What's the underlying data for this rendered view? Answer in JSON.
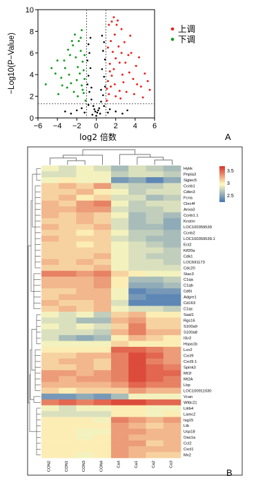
{
  "chart_data": [
    {
      "panel_label": "A",
      "type": "scatter",
      "xlabel": "log2 倍数",
      "ylabel": "−Log10(P−Value)",
      "xlim": [
        -6,
        6
      ],
      "ylim": [
        0,
        10
      ],
      "xticks": [
        "−6",
        "−4",
        "−2",
        "0",
        "2",
        "4",
        "6"
      ],
      "yticks": [
        "0",
        "2",
        "4",
        "6",
        "8",
        "10"
      ],
      "thresholds": {
        "x": [
          -1,
          1
        ],
        "y": 1.3
      },
      "colors": {
        "up": "#e8231f",
        "down": "#169b22",
        "ns": "#000000"
      },
      "legend_position": "top-right",
      "series": [
        {
          "name": "上调",
          "key": "up",
          "points": [
            [
              1.1,
              1.6
            ],
            [
              1.3,
              2.2
            ],
            [
              1.5,
              2.9
            ],
            [
              1.2,
              3.4
            ],
            [
              1.6,
              3.9
            ],
            [
              1.8,
              4.5
            ],
            [
              1.4,
              5.0
            ],
            [
              2.0,
              5.5
            ],
            [
              1.7,
              6.1
            ],
            [
              2.3,
              6.6
            ],
            [
              1.5,
              7.1
            ],
            [
              1.9,
              7.7
            ],
            [
              2.6,
              8.2
            ],
            [
              2.1,
              8.6
            ],
            [
              1.6,
              8.9
            ],
            [
              3.0,
              5.1
            ],
            [
              3.4,
              4.2
            ],
            [
              2.8,
              3.3
            ],
            [
              2.4,
              2.5
            ],
            [
              3.8,
              3.6
            ],
            [
              4.1,
              4.8
            ],
            [
              3.6,
              6.0
            ],
            [
              4.6,
              2.9
            ],
            [
              5.3,
              3.4
            ],
            [
              5.0,
              4.1
            ],
            [
              4.4,
              5.6
            ],
            [
              2.2,
              9.0
            ],
            [
              1.3,
              8.6
            ],
            [
              2.5,
              1.8
            ],
            [
              3.1,
              2.4
            ],
            [
              2.7,
              4.0
            ],
            [
              1.9,
              3.1
            ],
            [
              3.3,
              5.8
            ],
            [
              2.9,
              7.0
            ],
            [
              1.2,
              6.5
            ],
            [
              4.8,
              1.9
            ],
            [
              3.9,
              2.2
            ],
            [
              2.0,
              2.0
            ],
            [
              1.4,
              4.3
            ],
            [
              2.4,
              5.1
            ],
            [
              3.5,
              7.6
            ],
            [
              1.8,
              9.3
            ],
            [
              2.6,
              6.0
            ],
            [
              1.1,
              2.7
            ],
            [
              4.2,
              3.1
            ],
            [
              5.5,
              2.6
            ]
          ]
        },
        {
          "name": "下调",
          "key": "down",
          "points": [
            [
              -1.1,
              1.6
            ],
            [
              -1.3,
              2.3
            ],
            [
              -1.5,
              3.0
            ],
            [
              -1.2,
              3.6
            ],
            [
              -1.7,
              4.1
            ],
            [
              -1.9,
              4.7
            ],
            [
              -1.4,
              5.2
            ],
            [
              -2.1,
              5.6
            ],
            [
              -1.6,
              6.2
            ],
            [
              -2.4,
              6.7
            ],
            [
              -1.8,
              7.1
            ],
            [
              -2.2,
              7.7
            ],
            [
              -1.5,
              8.1
            ],
            [
              -2.8,
              4.0
            ],
            [
              -3.2,
              4.6
            ],
            [
              -2.6,
              3.2
            ],
            [
              -3.6,
              3.7
            ],
            [
              -4.2,
              4.1
            ],
            [
              -4.6,
              4.6
            ],
            [
              -5.2,
              3.1
            ],
            [
              -2.3,
              2.4
            ],
            [
              -3.0,
              2.8
            ],
            [
              -1.9,
              2.0
            ],
            [
              -2.7,
              5.8
            ],
            [
              -3.3,
              5.3
            ],
            [
              -1.3,
              4.4
            ],
            [
              -2.0,
              3.5
            ],
            [
              -3.9,
              2.2
            ],
            [
              -1.6,
              7.4
            ],
            [
              -2.5,
              7.1
            ],
            [
              -1.2,
              5.8
            ],
            [
              -4.0,
              5.3
            ],
            [
              -2.9,
              6.3
            ],
            [
              -1.4,
              2.6
            ],
            [
              -3.5,
              3.0
            ]
          ]
        },
        {
          "name": "",
          "key": "ns",
          "points": [
            [
              -0.9,
              3.1
            ],
            [
              -0.7,
              2.4
            ],
            [
              -0.5,
              1.7
            ],
            [
              -0.3,
              1.1
            ],
            [
              -0.1,
              0.6
            ],
            [
              0.1,
              0.5
            ],
            [
              0.3,
              0.9
            ],
            [
              0.5,
              1.5
            ],
            [
              0.7,
              2.1
            ],
            [
              0.9,
              2.9
            ],
            [
              -0.8,
              3.9
            ],
            [
              -0.6,
              4.6
            ],
            [
              -0.9,
              5.3
            ],
            [
              -0.7,
              6.0
            ],
            [
              -0.8,
              6.8
            ],
            [
              -0.6,
              7.4
            ],
            [
              0.8,
              3.8
            ],
            [
              0.6,
              4.5
            ],
            [
              0.9,
              5.4
            ],
            [
              0.7,
              6.2
            ],
            [
              0.8,
              7.0
            ],
            [
              0.6,
              7.6
            ],
            [
              -0.4,
              0.3
            ],
            [
              0.4,
              0.4
            ],
            [
              0.0,
              0.2
            ],
            [
              -1.5,
              0.9
            ],
            [
              -2.0,
              0.7
            ],
            [
              -2.6,
              0.4
            ],
            [
              1.4,
              0.8
            ],
            [
              2.0,
              0.6
            ],
            [
              2.7,
              0.4
            ],
            [
              -0.2,
              0.8
            ],
            [
              0.2,
              0.7
            ],
            [
              -0.5,
              2.8
            ],
            [
              0.5,
              2.6
            ],
            [
              -0.8,
              1.2
            ],
            [
              0.8,
              1.1
            ],
            [
              -1.2,
              0.5
            ],
            [
              1.2,
              0.5
            ],
            [
              -3.2,
              0.6
            ],
            [
              3.2,
              0.7
            ]
          ]
        }
      ]
    },
    {
      "panel_label": "B",
      "type": "heatmap",
      "columns": [
        "CON2",
        "CON1",
        "CON3",
        "CON4",
        "Ca4",
        "Ca1",
        "Ca2",
        "Ca3"
      ],
      "rows": [
        "Hykk",
        "Pnpla3",
        "Siglec5",
        "Ccnb1",
        "Cdkn3",
        "Fcna",
        "Clec4f",
        "Anxa3",
        "Ccnb1.1",
        "Knstrn",
        "LOC100359539",
        "Ccnb2",
        "LOC100359539.1",
        "Ect2",
        "Kif20a",
        "Cdk1",
        "LOC691173",
        "Cdc20",
        "Stac3",
        "C1qa",
        "C1qb",
        "Cd5l",
        "Adgre1",
        "Cd163",
        "C1qc",
        "Saal1",
        "Rgs16",
        "S100a9",
        "S100a8",
        "Il1r2",
        "Hspa1b",
        "Lcn2",
        "Cxcl9",
        "Cxcl9.1",
        "Spink3",
        "Mt1f",
        "Mt2A",
        "Lbp",
        "LOC100911030",
        "Vcan",
        "Wfdc21",
        "Lilrb4",
        "Lamc2",
        "Isg15",
        "Ltb",
        "Usp18",
        "Oas1a",
        "Ccl2",
        "Cxcl1",
        "Mx2"
      ],
      "values": [
        [
          2.9,
          2.8,
          2.9,
          2.8,
          2.6,
          2.8,
          2.7,
          2.6
        ],
        [
          2.8,
          2.8,
          2.9,
          2.9,
          2.7,
          2.8,
          2.8,
          2.7
        ],
        [
          2.9,
          3.0,
          2.9,
          2.9,
          2.4,
          2.5,
          2.3,
          2.5
        ],
        [
          3.1,
          3.2,
          3.1,
          3.3,
          2.8,
          2.7,
          2.7,
          2.8
        ],
        [
          3.1,
          3.1,
          3.2,
          3.0,
          2.9,
          2.7,
          2.8,
          2.8
        ],
        [
          3.1,
          3.2,
          3.0,
          3.1,
          2.8,
          2.8,
          2.6,
          2.7
        ],
        [
          3.2,
          3.1,
          3.3,
          3.4,
          2.9,
          2.7,
          2.8,
          2.8
        ],
        [
          3.2,
          3.2,
          3.3,
          3.3,
          2.8,
          2.7,
          2.7,
          2.8
        ],
        [
          3.2,
          3.1,
          3.2,
          3.1,
          2.9,
          2.6,
          2.7,
          2.6
        ],
        [
          3.1,
          3.1,
          3.2,
          3.1,
          2.8,
          2.6,
          2.7,
          2.5
        ],
        [
          3.2,
          3.1,
          3.1,
          3.2,
          2.8,
          2.6,
          2.6,
          2.5
        ],
        [
          3.1,
          3.1,
          3.0,
          3.1,
          2.9,
          2.7,
          2.7,
          2.6
        ],
        [
          3.2,
          3.1,
          3.1,
          3.1,
          2.8,
          2.7,
          2.6,
          2.6
        ],
        [
          3.1,
          3.1,
          3.0,
          3.1,
          2.9,
          2.8,
          2.7,
          2.6
        ],
        [
          3.1,
          3.1,
          3.1,
          3.1,
          2.9,
          2.8,
          2.8,
          2.7
        ],
        [
          3.1,
          3.1,
          3.1,
          3.2,
          2.9,
          2.8,
          2.7,
          2.7
        ],
        [
          3.2,
          3.1,
          3.2,
          3.1,
          2.9,
          2.8,
          2.8,
          2.7
        ],
        [
          3.1,
          3.1,
          3.1,
          3.2,
          2.9,
          2.8,
          2.8,
          2.8
        ],
        [
          3.4,
          3.4,
          3.3,
          3.4,
          3.1,
          3.0,
          2.9,
          2.9
        ],
        [
          3.2,
          3.2,
          3.2,
          3.3,
          3.0,
          2.6,
          2.6,
          2.7
        ],
        [
          3.2,
          3.2,
          3.2,
          3.3,
          3.0,
          2.5,
          2.5,
          2.6
        ],
        [
          3.1,
          3.1,
          3.2,
          3.2,
          2.9,
          2.3,
          2.4,
          2.4
        ],
        [
          3.1,
          3.2,
          3.2,
          3.2,
          2.9,
          2.4,
          2.3,
          2.3
        ],
        [
          3.2,
          3.1,
          3.1,
          3.2,
          2.8,
          2.3,
          2.3,
          2.3
        ],
        [
          3.1,
          3.2,
          3.1,
          3.2,
          2.9,
          2.8,
          2.8,
          2.7
        ],
        [
          2.9,
          2.8,
          2.9,
          2.7,
          3.1,
          3.2,
          3.0,
          3.0
        ],
        [
          2.8,
          2.8,
          2.6,
          2.6,
          3.2,
          3.3,
          3.1,
          3.1
        ],
        [
          2.9,
          2.8,
          2.9,
          2.8,
          3.1,
          3.4,
          3.1,
          3.1
        ],
        [
          2.8,
          2.8,
          2.8,
          2.7,
          3.2,
          3.4,
          3.2,
          3.2
        ],
        [
          2.8,
          2.6,
          2.5,
          2.6,
          3.0,
          3.2,
          3.1,
          3.0
        ],
        [
          2.9,
          2.9,
          2.9,
          2.9,
          3.1,
          3.0,
          3.0,
          3.0
        ],
        [
          3.0,
          3.0,
          3.0,
          3.0,
          3.5,
          3.5,
          3.4,
          3.3
        ],
        [
          3.1,
          3.1,
          3.2,
          3.2,
          3.4,
          3.6,
          3.5,
          3.3
        ],
        [
          3.1,
          3.2,
          3.2,
          3.1,
          3.4,
          3.6,
          3.4,
          3.3
        ],
        [
          3.1,
          3.1,
          3.2,
          3.1,
          3.4,
          3.6,
          3.5,
          3.4
        ],
        [
          3.3,
          3.3,
          3.2,
          3.3,
          3.4,
          3.6,
          3.5,
          3.5
        ],
        [
          3.3,
          3.2,
          3.3,
          3.3,
          3.4,
          3.6,
          3.5,
          3.4
        ],
        [
          3.2,
          3.2,
          3.2,
          3.2,
          3.3,
          3.5,
          3.4,
          3.4
        ],
        [
          3.1,
          3.0,
          3.1,
          3.1,
          3.1,
          3.3,
          3.2,
          3.2
        ],
        [
          2.4,
          2.4,
          2.5,
          2.4,
          2.6,
          2.9,
          2.9,
          2.9
        ],
        [
          3.4,
          3.5,
          3.4,
          3.5,
          3.6,
          3.6,
          3.5,
          3.5
        ],
        [
          2.9,
          2.8,
          2.9,
          2.9,
          3.0,
          3.0,
          2.9,
          2.9
        ],
        [
          2.8,
          2.8,
          2.8,
          2.8,
          3.0,
          3.0,
          2.9,
          3.0
        ],
        [
          3.0,
          3.0,
          3.0,
          2.9,
          3.4,
          3.3,
          3.2,
          3.3
        ],
        [
          3.0,
          3.0,
          3.0,
          3.0,
          3.3,
          3.2,
          3.1,
          3.2
        ],
        [
          3.0,
          3.0,
          2.9,
          2.9,
          3.3,
          3.3,
          3.2,
          3.2
        ],
        [
          3.0,
          3.0,
          2.9,
          3.0,
          3.3,
          3.2,
          3.2,
          3.2
        ],
        [
          3.0,
          3.0,
          3.0,
          3.0,
          3.3,
          3.3,
          3.1,
          3.2
        ],
        [
          3.0,
          3.0,
          3.0,
          3.0,
          3.3,
          3.2,
          3.2,
          3.2
        ],
        [
          3.0,
          3.0,
          2.9,
          3.0,
          3.3,
          3.2,
          3.1,
          3.1
        ]
      ],
      "color_scale": {
        "min": 2.2,
        "max": 3.7,
        "low": "#4575b4",
        "mid": "#fffbbf",
        "high": "#d73027"
      },
      "colorbar_ticks": [
        "3.5",
        "3",
        "2.5"
      ],
      "legend_position": "top-right"
    }
  ]
}
